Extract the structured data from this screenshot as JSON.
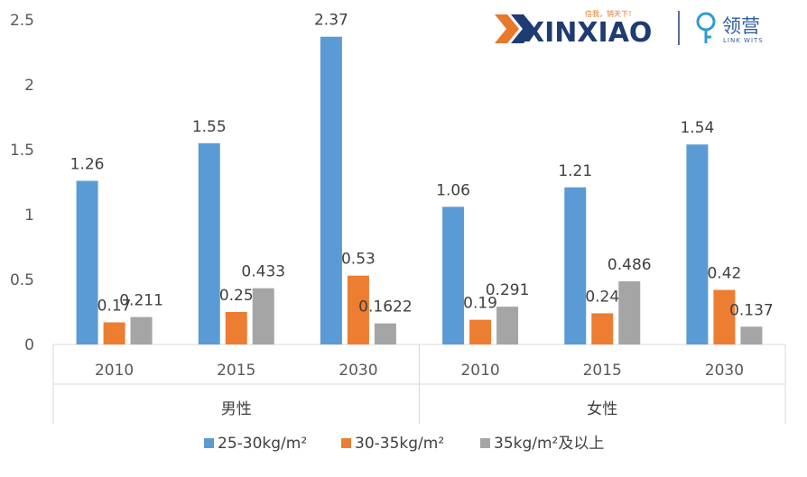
{
  "logos": {
    "xinxiao_text": "XINXIAO",
    "xinxiao_slogan": "信我，销天下！",
    "linkwits_cn": "领营",
    "linkwits_en": "LINK WITS"
  },
  "colors": {
    "series": [
      "#5b9bd5",
      "#ed7d31",
      "#a5a5a5"
    ],
    "axis": "#d9d9d9",
    "text": "#404040"
  },
  "chart_data": {
    "type": "bar",
    "title": "",
    "xlabel": "",
    "ylabel": "",
    "ylim": [
      0,
      2.5
    ],
    "yticks": [
      "0",
      "0.5",
      "1",
      "1.5",
      "2",
      "2.5"
    ],
    "grid": false,
    "legend_position": "bottom",
    "groups": [
      {
        "name": "男性",
        "categories": [
          "2010",
          "2015",
          "2030"
        ]
      },
      {
        "name": "女性",
        "categories": [
          "2010",
          "2015",
          "2030"
        ]
      }
    ],
    "series": [
      {
        "name": "25-30kg/m²",
        "values": [
          1.26,
          1.55,
          2.37,
          1.06,
          1.21,
          1.54
        ],
        "labels": [
          "1.26",
          "1.55",
          "2.37",
          "1.06",
          "1.21",
          "1.54"
        ]
      },
      {
        "name": "30-35kg/m²",
        "values": [
          0.17,
          0.25,
          0.53,
          0.19,
          0.24,
          0.42
        ],
        "labels": [
          "0.17",
          "0.25",
          "0.53",
          "0.19",
          "0.24",
          "0.42"
        ]
      },
      {
        "name": "35kg/m²及以上",
        "values": [
          0.211,
          0.433,
          0.1622,
          0.291,
          0.486,
          0.137
        ],
        "labels": [
          "0.211",
          "0.433",
          "0.1622",
          "0.291",
          "0.486",
          "0.137"
        ]
      }
    ]
  }
}
